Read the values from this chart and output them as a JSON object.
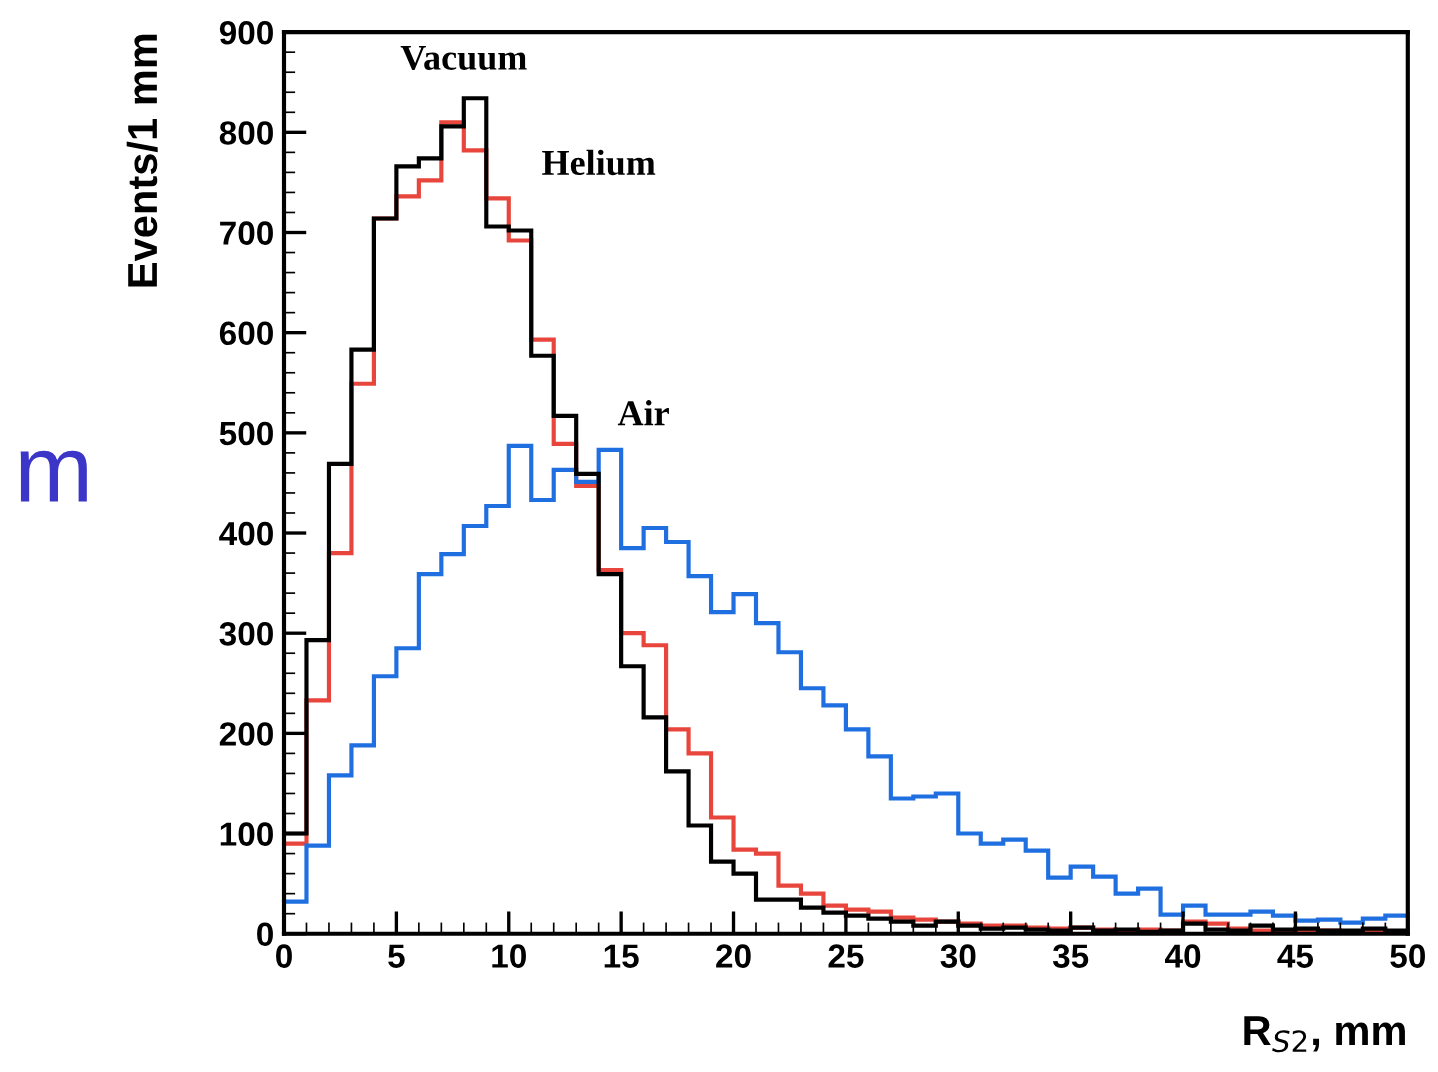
{
  "chart_data": {
    "type": "histogram",
    "xlabel": "R$_{S2}$, mm",
    "ylabel": "Events/1 mm",
    "bins": [
      0,
      1,
      2,
      3,
      4,
      5,
      6,
      7,
      8,
      9,
      10,
      11,
      12,
      13,
      14,
      15,
      16,
      17,
      18,
      19,
      20,
      21,
      22,
      23,
      24,
      25,
      26,
      27,
      28,
      29,
      30,
      31,
      32,
      33,
      34,
      35,
      36,
      37,
      38,
      39,
      40,
      41,
      42,
      43,
      44,
      45,
      46,
      47,
      48,
      49,
      50
    ],
    "series": [
      {
        "name": "Helium",
        "color": "#e8463c",
        "values": [
          90,
          233,
          380,
          549,
          714,
          736,
          752,
          810,
          782,
          734,
          692,
          593,
          489,
          447,
          363,
          300,
          288,
          204,
          180,
          116,
          84,
          80,
          48,
          40,
          28,
          24,
          22,
          16,
          14,
          12,
          10,
          8,
          8,
          6,
          5,
          6,
          4,
          3,
          4,
          3,
          12,
          10,
          5,
          3,
          3,
          2,
          3,
          2,
          2,
          2
        ]
      },
      {
        "name": "Air",
        "color": "#1f6fe0",
        "values": [
          32,
          88,
          158,
          188,
          257,
          285,
          359,
          379,
          407,
          427,
          487,
          433,
          463,
          451,
          483,
          385,
          405,
          391,
          357,
          321,
          339,
          310,
          281,
          245,
          228,
          204,
          177,
          135,
          137,
          140,
          100,
          90,
          94,
          83,
          56,
          67,
          57,
          40,
          45,
          19,
          28,
          19,
          19,
          22,
          18,
          13,
          14,
          11,
          15,
          18
        ]
      },
      {
        "name": "Vacuum",
        "color": "#000000",
        "values": [
          100,
          293,
          469,
          583,
          714,
          766,
          774,
          806,
          834,
          706,
          702,
          577,
          517,
          459,
          359,
          267,
          216,
          162,
          108,
          72,
          60,
          34,
          34,
          26,
          21,
          18,
          15,
          12,
          8,
          12,
          8,
          5,
          6,
          4,
          3,
          6,
          3,
          4,
          2,
          3,
          10,
          4,
          3,
          8,
          4,
          5,
          3,
          3,
          5,
          3
        ]
      }
    ],
    "xlim": [
      0,
      50
    ],
    "xticks": [
      0,
      5,
      10,
      15,
      20,
      25,
      30,
      35,
      40,
      45,
      50
    ],
    "ylim": [
      0,
      900
    ],
    "yticks": [
      0,
      100,
      200,
      300,
      400,
      500,
      600,
      700,
      800,
      900
    ],
    "grid": false,
    "annotations": [
      "m"
    ]
  }
}
